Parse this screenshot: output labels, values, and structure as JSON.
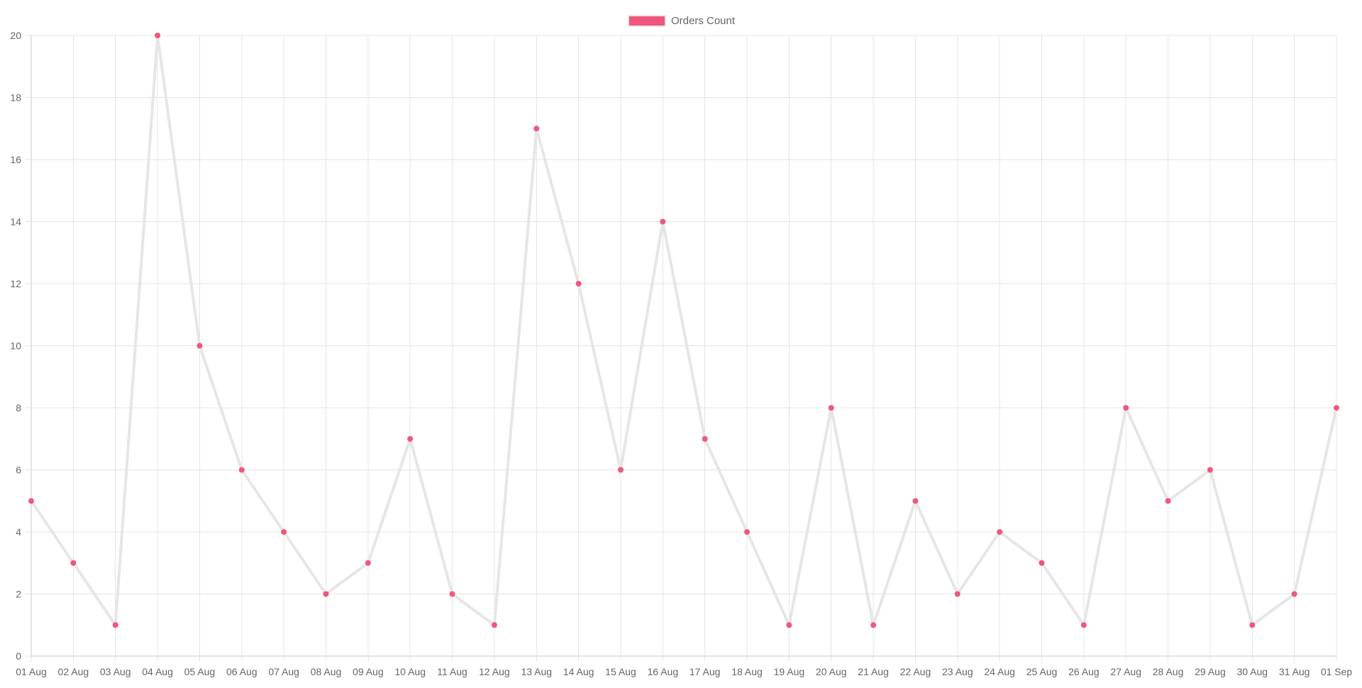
{
  "chart_data": {
    "type": "line",
    "categories": [
      "01 Aug",
      "02 Aug",
      "03 Aug",
      "04 Aug",
      "05 Aug",
      "06 Aug",
      "07 Aug",
      "08 Aug",
      "09 Aug",
      "10 Aug",
      "11 Aug",
      "12 Aug",
      "13 Aug",
      "14 Aug",
      "15 Aug",
      "16 Aug",
      "17 Aug",
      "18 Aug",
      "19 Aug",
      "20 Aug",
      "21 Aug",
      "22 Aug",
      "23 Aug",
      "24 Aug",
      "25 Aug",
      "26 Aug",
      "27 Aug",
      "28 Aug",
      "29 Aug",
      "30 Aug",
      "31 Aug",
      "01 Sep"
    ],
    "series": [
      {
        "name": "Orders Count",
        "values": [
          5,
          3,
          1,
          20,
          10,
          6,
          4,
          2,
          3,
          7,
          2,
          1,
          17,
          12,
          6,
          14,
          7,
          4,
          1,
          8,
          1,
          5,
          2,
          4,
          3,
          1,
          8,
          5,
          6,
          1,
          2,
          8
        ]
      }
    ],
    "ylim": [
      0,
      20
    ],
    "yticks": [
      0,
      2,
      4,
      6,
      8,
      10,
      12,
      14,
      16,
      18,
      20
    ],
    "grid": true,
    "legend_position": "top",
    "colors": {
      "line": "#e6e6e6",
      "point": "#f0577d",
      "legend_box": "#f0577d",
      "grid": "#e4e4e4",
      "axis": "#c8c8c8",
      "text": "#666666"
    }
  }
}
